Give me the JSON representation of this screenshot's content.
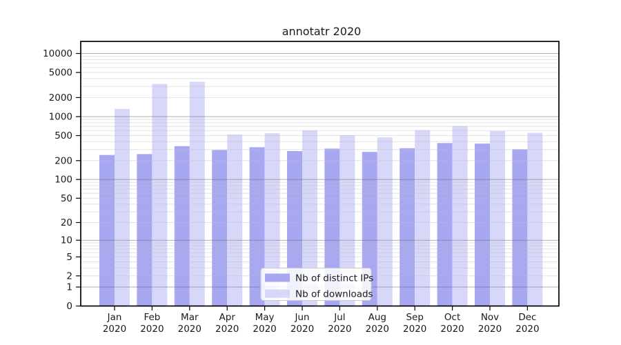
{
  "title": "annotatr 2020",
  "legend": {
    "items": [
      {
        "label": "Nb of distinct IPs",
        "color": "#a7a7f2"
      },
      {
        "label": "Nb of downloads",
        "color": "#d7d7f9"
      }
    ],
    "position": "lower center"
  },
  "chart_data": {
    "type": "bar",
    "title": "annotatr 2020",
    "categories": [
      "Jan",
      "Feb",
      "Mar",
      "Apr",
      "May",
      "Jun",
      "Jul",
      "Aug",
      "Sep",
      "Oct",
      "Nov",
      "Dec"
    ],
    "category_year": "2020",
    "series": [
      {
        "name": "Nb of distinct IPs",
        "color": "#a7a7f2",
        "values": [
          245,
          254,
          340,
          295,
          326,
          283,
          310,
          275,
          315,
          380,
          373,
          302
        ]
      },
      {
        "name": "Nb of downloads",
        "color": "#d7d7f9",
        "values": [
          1320,
          3300,
          3560,
          520,
          545,
          607,
          505,
          468,
          610,
          710,
          590,
          553
        ]
      }
    ],
    "xlabel": "",
    "ylabel": "",
    "y_scale": "log10(1+y)",
    "y_ticks": [
      0,
      1,
      2,
      5,
      10,
      20,
      50,
      100,
      200,
      500,
      1000,
      2000,
      5000,
      10000
    ],
    "ylim": [
      0,
      15500
    ],
    "grid": "horizontal; major gray lines at powers of 10, faint minor lines at 2-9 multiples, drawn over bars",
    "legend_position": "lower center"
  },
  "frame_color": "#000000",
  "grid_major_color": "rgba(110,110,110,0.55)",
  "grid_minor_color": "rgba(190,190,190,0.45)"
}
